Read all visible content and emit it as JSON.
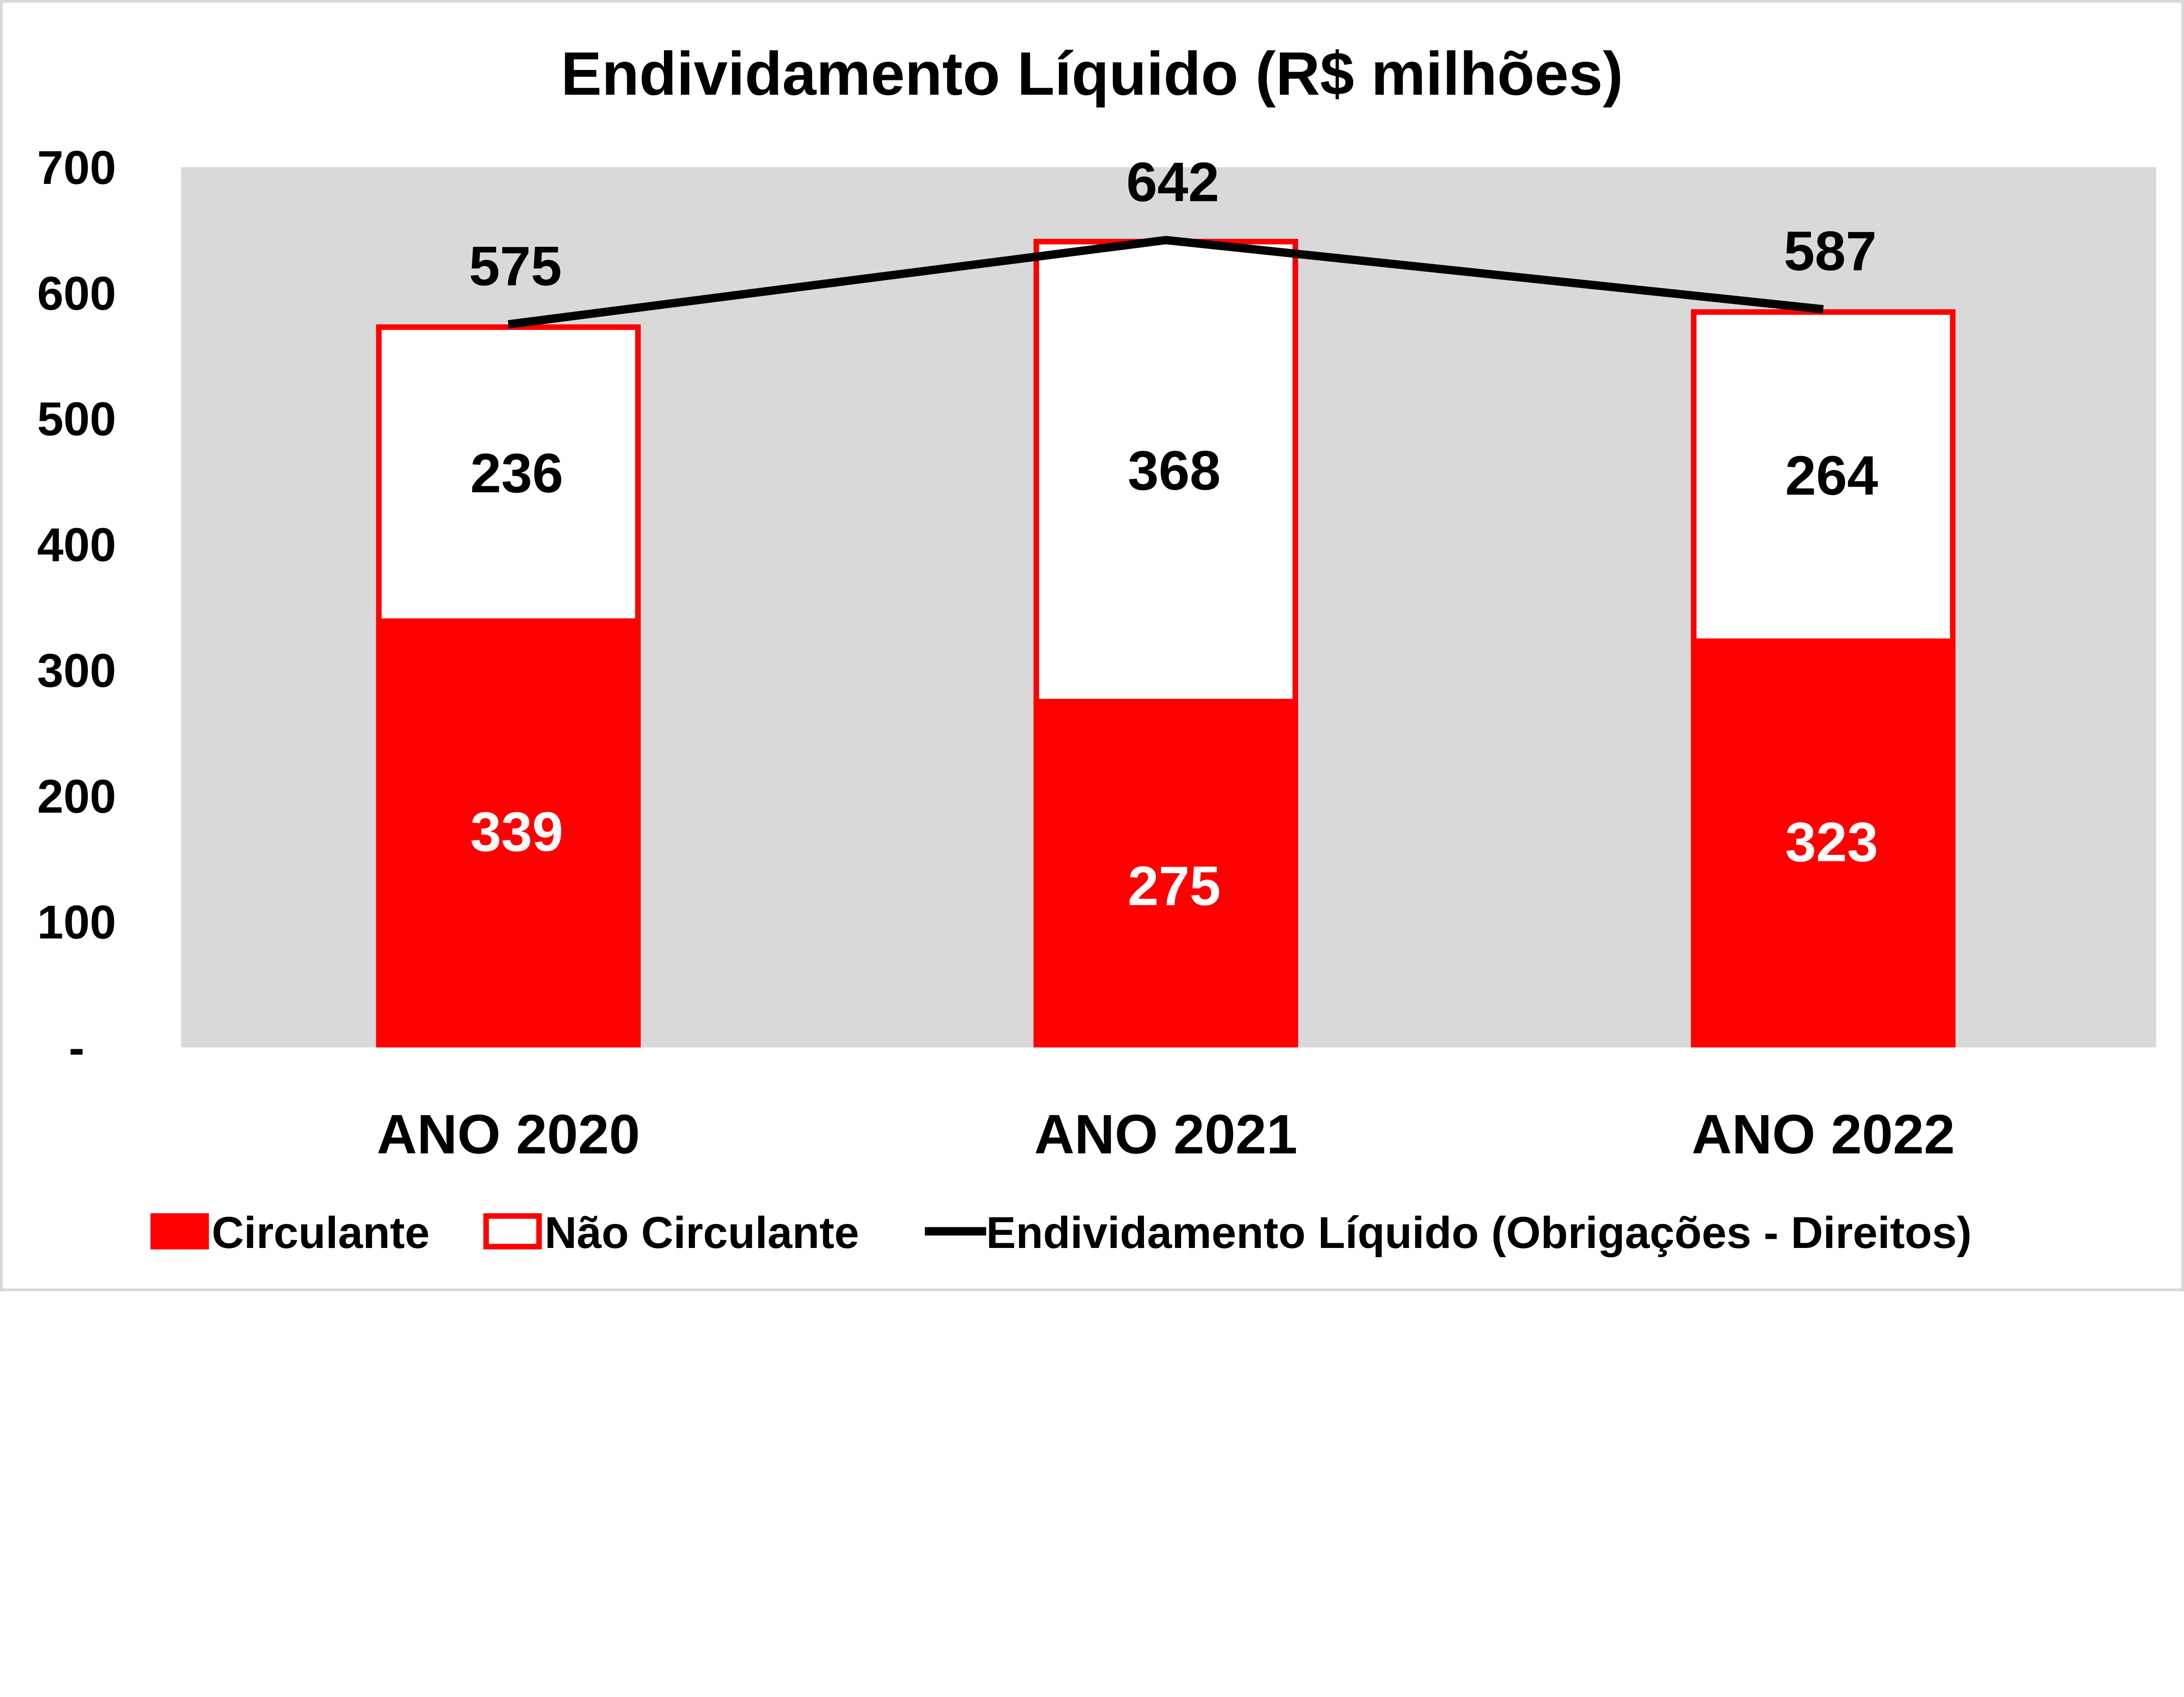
{
  "chart_data": {
    "type": "bar",
    "stacked": true,
    "title": "Endividamento Líquido (R$ milhões)",
    "xlabel": "",
    "ylabel": "",
    "categories": [
      "ANO 2020",
      "ANO 2021",
      "ANO 2022"
    ],
    "ylim": [
      0,
      700
    ],
    "yticks": [
      0,
      100,
      200,
      300,
      400,
      500,
      600,
      700
    ],
    "ytick_labels": [
      "-",
      "100",
      "200",
      "300",
      "400",
      "500",
      "600",
      "700"
    ],
    "grid": false,
    "plot_background": "#d9d9d9",
    "legend_position": "bottom",
    "series": [
      {
        "name": "Circulante",
        "kind": "bar",
        "values": [
          339,
          275,
          323
        ],
        "color": "#ff0000",
        "label_color": "#ffffff"
      },
      {
        "name": "Não Circulante",
        "kind": "bar",
        "values": [
          236,
          368,
          264
        ],
        "color": "#ffffff",
        "border": "#ff0000",
        "label_color": "#000000"
      },
      {
        "name": "Endividamento Líquido (Obrigações - Direitos)",
        "kind": "line",
        "values": [
          575,
          642,
          587
        ],
        "color": "#000000"
      }
    ]
  }
}
